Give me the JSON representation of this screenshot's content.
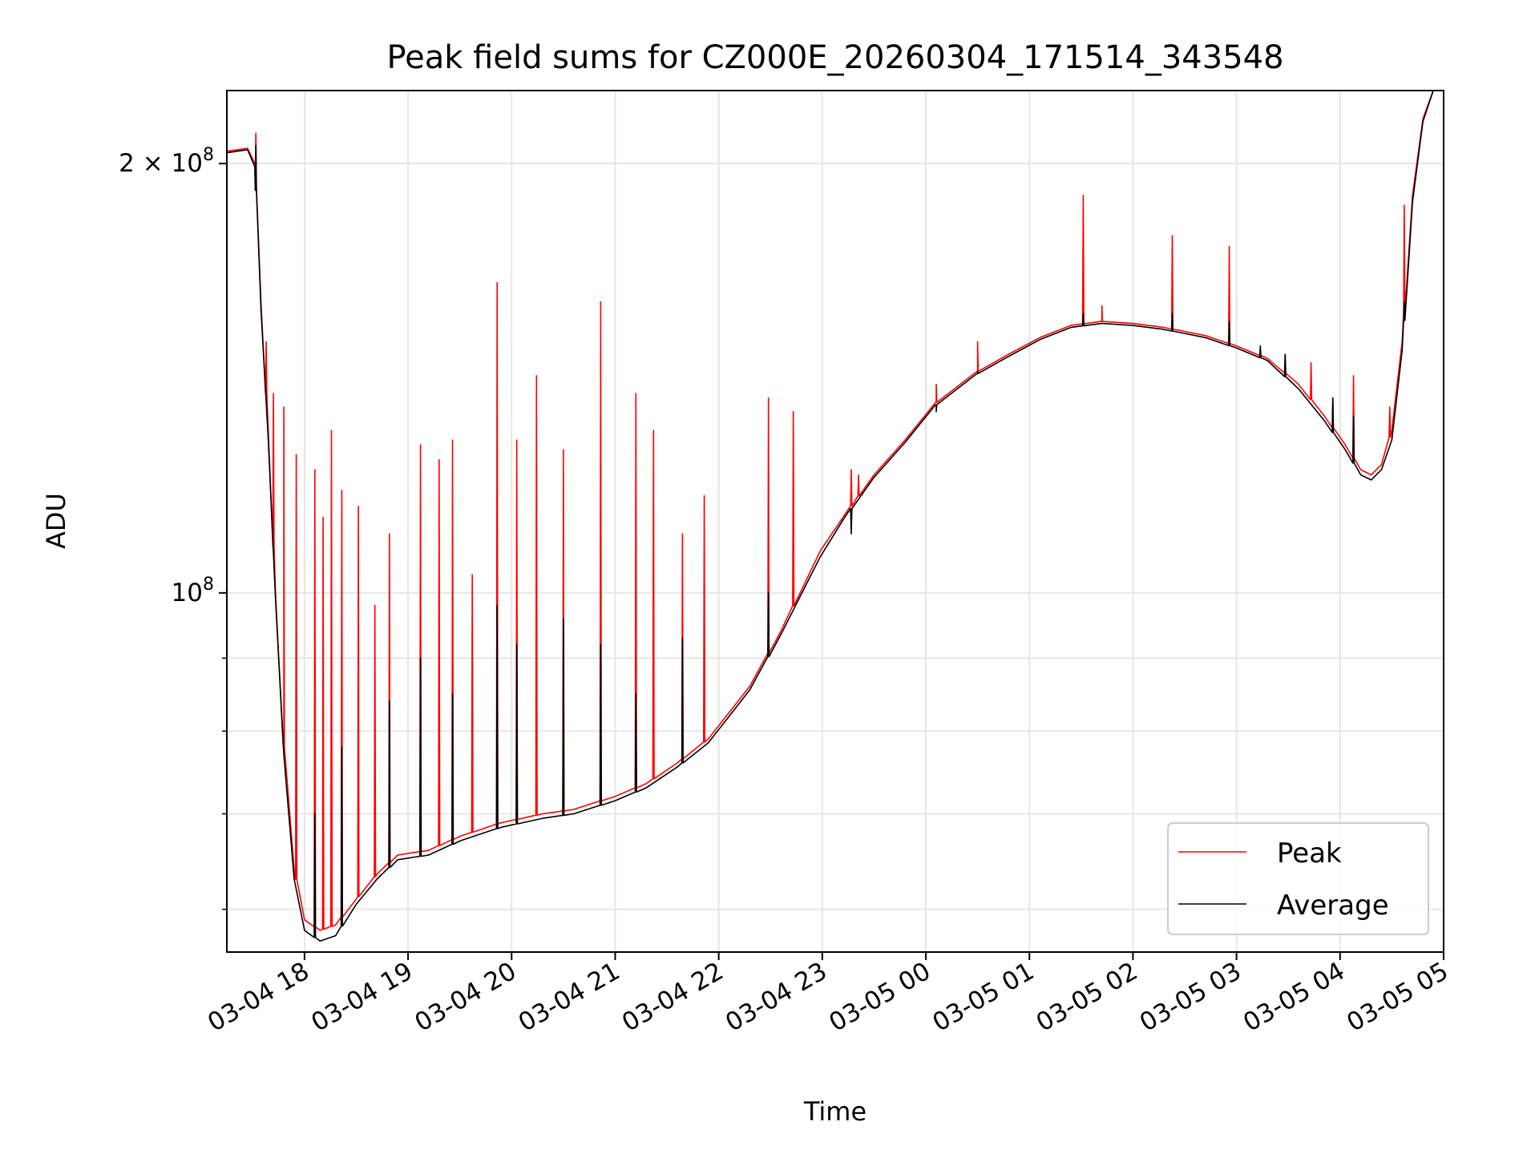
{
  "chart_data": {
    "type": "line",
    "title": "Peak field sums for CZ000E_20260304_171514_343548",
    "xlabel": "Time",
    "ylabel": "ADU",
    "y_scale": "log",
    "x_range_hours": [
      17.25,
      29.0
    ],
    "ylim": [
      56000000,
      225000000
    ],
    "x_ticks": [
      {
        "hour": 18,
        "label": "03-04 18"
      },
      {
        "hour": 19,
        "label": "03-04 19"
      },
      {
        "hour": 20,
        "label": "03-04 20"
      },
      {
        "hour": 21,
        "label": "03-04 21"
      },
      {
        "hour": 22,
        "label": "03-04 22"
      },
      {
        "hour": 23,
        "label": "03-04 23"
      },
      {
        "hour": 24,
        "label": "03-05 00"
      },
      {
        "hour": 25,
        "label": "03-05 01"
      },
      {
        "hour": 26,
        "label": "03-05 02"
      },
      {
        "hour": 27,
        "label": "03-05 03"
      },
      {
        "hour": 28,
        "label": "03-05 04"
      },
      {
        "hour": 29,
        "label": "03-05 05"
      }
    ],
    "y_major_ticks": [
      {
        "value": 100000000,
        "base": "10",
        "exp": "8",
        "mult": ""
      },
      {
        "value": 200000000,
        "base": "10",
        "exp": "8",
        "mult": "2 × "
      }
    ],
    "y_minor_ticks": [
      60000000,
      70000000,
      80000000,
      90000000
    ],
    "grid": true,
    "legend": {
      "position": "lower-right",
      "entries": [
        "Peak",
        "Average"
      ]
    },
    "series": [
      {
        "name": "Peak",
        "color": "#ff0000",
        "baseline": [
          [
            17.25,
            204000000
          ],
          [
            17.45,
            205000000
          ],
          [
            17.52,
            200000000
          ],
          [
            17.58,
            160000000
          ],
          [
            17.65,
            130000000
          ],
          [
            17.72,
            100000000
          ],
          [
            17.8,
            78000000
          ],
          [
            17.9,
            64000000
          ],
          [
            18.0,
            59000000
          ],
          [
            18.15,
            58000000
          ],
          [
            18.3,
            58500000
          ],
          [
            18.5,
            61000000
          ],
          [
            18.7,
            63500000
          ],
          [
            18.9,
            65500000
          ],
          [
            19.2,
            66000000
          ],
          [
            19.5,
            67500000
          ],
          [
            19.9,
            69000000
          ],
          [
            20.3,
            70000000
          ],
          [
            20.6,
            70500000
          ],
          [
            21.0,
            72000000
          ],
          [
            21.3,
            73500000
          ],
          [
            21.6,
            76000000
          ],
          [
            21.9,
            79000000
          ],
          [
            22.3,
            86000000
          ],
          [
            22.6,
            94000000
          ],
          [
            22.98,
            107000000
          ],
          [
            23.2,
            113000000
          ],
          [
            23.5,
            121000000
          ],
          [
            23.8,
            128000000
          ],
          [
            24.1,
            136000000
          ],
          [
            24.5,
            143000000
          ],
          [
            24.8,
            147000000
          ],
          [
            25.1,
            151000000
          ],
          [
            25.4,
            154000000
          ],
          [
            25.7,
            155000000
          ],
          [
            26.0,
            154500000
          ],
          [
            26.3,
            153500000
          ],
          [
            26.7,
            151500000
          ],
          [
            27.0,
            149000000
          ],
          [
            27.3,
            146000000
          ],
          [
            27.6,
            140000000
          ],
          [
            27.85,
            133000000
          ],
          [
            28.05,
            127000000
          ],
          [
            28.2,
            122000000
          ],
          [
            28.3,
            121000000
          ],
          [
            28.4,
            123000000
          ],
          [
            28.5,
            130000000
          ],
          [
            28.6,
            150000000
          ],
          [
            28.7,
            190000000
          ],
          [
            28.8,
            215000000
          ],
          [
            28.9,
            225000000
          ],
          [
            29.0,
            225000000
          ]
        ],
        "spikes": [
          [
            17.53,
            210000000
          ],
          [
            17.63,
            150000000
          ],
          [
            17.7,
            138000000
          ],
          [
            17.8,
            135000000
          ],
          [
            17.92,
            125000000
          ],
          [
            18.1,
            122000000
          ],
          [
            18.18,
            113000000
          ],
          [
            18.26,
            130000000
          ],
          [
            18.36,
            118000000
          ],
          [
            18.52,
            115000000
          ],
          [
            18.68,
            98000000
          ],
          [
            18.82,
            110000000
          ],
          [
            19.12,
            127000000
          ],
          [
            19.3,
            124000000
          ],
          [
            19.43,
            128000000
          ],
          [
            19.62,
            103000000
          ],
          [
            19.86,
            165000000
          ],
          [
            20.05,
            128000000
          ],
          [
            20.24,
            142000000
          ],
          [
            20.5,
            126000000
          ],
          [
            20.86,
            160000000
          ],
          [
            21.2,
            138000000
          ],
          [
            21.37,
            130000000
          ],
          [
            21.65,
            110000000
          ],
          [
            21.86,
            117000000
          ],
          [
            22.48,
            137000000
          ],
          [
            22.72,
            134000000
          ],
          [
            23.28,
            122000000
          ],
          [
            23.35,
            121000000
          ],
          [
            24.1,
            140000000
          ],
          [
            24.5,
            150000000
          ],
          [
            25.52,
            190000000
          ],
          [
            25.7,
            159000000
          ],
          [
            26.38,
            178000000
          ],
          [
            26.93,
            175000000
          ],
          [
            27.23,
            148000000
          ],
          [
            27.47,
            147000000
          ],
          [
            27.72,
            145000000
          ],
          [
            27.93,
            137000000
          ],
          [
            28.13,
            142000000
          ],
          [
            28.48,
            135000000
          ],
          [
            28.62,
            187000000
          ]
        ]
      },
      {
        "name": "Average",
        "color": "#000000",
        "baseline": [
          [
            17.25,
            203500000
          ],
          [
            17.45,
            204500000
          ],
          [
            17.52,
            199000000
          ],
          [
            17.58,
            158000000
          ],
          [
            17.65,
            128000000
          ],
          [
            17.72,
            99000000
          ],
          [
            17.8,
            77000000
          ],
          [
            17.9,
            63000000
          ],
          [
            18.0,
            58000000
          ],
          [
            18.15,
            57000000
          ],
          [
            18.3,
            57500000
          ],
          [
            18.5,
            60500000
          ],
          [
            18.7,
            63000000
          ],
          [
            18.9,
            65000000
          ],
          [
            19.2,
            65500000
          ],
          [
            19.5,
            67000000
          ],
          [
            19.9,
            68500000
          ],
          [
            20.3,
            69500000
          ],
          [
            20.6,
            70000000
          ],
          [
            21.0,
            71500000
          ],
          [
            21.3,
            73000000
          ],
          [
            21.6,
            75500000
          ],
          [
            21.9,
            78500000
          ],
          [
            22.3,
            85500000
          ],
          [
            22.6,
            93500000
          ],
          [
            22.98,
            106000000
          ],
          [
            23.2,
            112500000
          ],
          [
            23.5,
            120500000
          ],
          [
            23.8,
            127500000
          ],
          [
            24.1,
            135500000
          ],
          [
            24.5,
            142500000
          ],
          [
            24.8,
            146500000
          ],
          [
            25.1,
            150500000
          ],
          [
            25.4,
            153500000
          ],
          [
            25.7,
            154500000
          ],
          [
            26.0,
            154000000
          ],
          [
            26.3,
            153000000
          ],
          [
            26.7,
            151000000
          ],
          [
            27.0,
            148500000
          ],
          [
            27.3,
            145500000
          ],
          [
            27.6,
            139000000
          ],
          [
            27.85,
            132000000
          ],
          [
            28.05,
            126000000
          ],
          [
            28.2,
            121000000
          ],
          [
            28.3,
            120000000
          ],
          [
            28.4,
            122000000
          ],
          [
            28.5,
            128000000
          ],
          [
            28.6,
            148000000
          ],
          [
            28.7,
            188000000
          ],
          [
            28.8,
            214000000
          ],
          [
            28.9,
            225000000
          ],
          [
            29.0,
            225000000
          ]
        ],
        "spikes": [
          [
            17.53,
            206000000
          ],
          [
            18.1,
            70000000
          ],
          [
            18.36,
            78000000
          ],
          [
            18.82,
            84000000
          ],
          [
            19.12,
            90000000
          ],
          [
            19.43,
            85000000
          ],
          [
            19.86,
            98000000
          ],
          [
            20.05,
            92000000
          ],
          [
            20.5,
            96000000
          ],
          [
            20.86,
            92000000
          ],
          [
            21.2,
            85000000
          ],
          [
            21.65,
            93000000
          ],
          [
            22.48,
            100000000
          ],
          [
            23.28,
            110000000
          ],
          [
            24.1,
            134000000
          ],
          [
            24.5,
            143000000
          ],
          [
            25.52,
            157000000
          ],
          [
            26.38,
            157000000
          ],
          [
            26.93,
            155000000
          ],
          [
            27.23,
            149000000
          ],
          [
            27.47,
            147000000
          ],
          [
            27.93,
            137000000
          ],
          [
            28.13,
            133000000
          ],
          [
            28.62,
            160000000
          ]
        ]
      }
    ]
  }
}
